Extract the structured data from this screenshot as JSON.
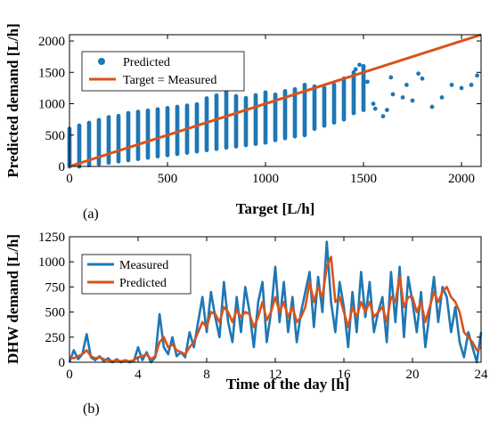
{
  "chart_data": [
    {
      "type": "scatter",
      "panel_label": "(a)",
      "xlabel": "Target [L/h]",
      "ylabel": "Predicted demand [L/h]",
      "xlim": [
        0,
        2100
      ],
      "ylim": [
        0,
        2100
      ],
      "xticks": [
        0,
        500,
        1000,
        1500,
        2000
      ],
      "yticks": [
        0,
        500,
        1000,
        1500,
        2000
      ],
      "grid": false,
      "legend_position": "top-left",
      "series": [
        {
          "name": "Predicted",
          "kind": "points",
          "color": "#1f77b4",
          "columns": [
            {
              "x": 0,
              "ymin": 0,
              "ymax": 600
            },
            {
              "x": 50,
              "ymin": 0,
              "ymax": 650
            },
            {
              "x": 100,
              "ymin": 20,
              "ymax": 700
            },
            {
              "x": 150,
              "ymin": 40,
              "ymax": 760
            },
            {
              "x": 200,
              "ymin": 60,
              "ymax": 800
            },
            {
              "x": 250,
              "ymin": 80,
              "ymax": 820
            },
            {
              "x": 300,
              "ymin": 100,
              "ymax": 850
            },
            {
              "x": 350,
              "ymin": 120,
              "ymax": 880
            },
            {
              "x": 400,
              "ymin": 140,
              "ymax": 900
            },
            {
              "x": 450,
              "ymin": 160,
              "ymax": 920
            },
            {
              "x": 500,
              "ymin": 180,
              "ymax": 940
            },
            {
              "x": 550,
              "ymin": 200,
              "ymax": 960
            },
            {
              "x": 600,
              "ymin": 220,
              "ymax": 980
            },
            {
              "x": 650,
              "ymin": 240,
              "ymax": 1000
            },
            {
              "x": 700,
              "ymin": 260,
              "ymax": 1100
            },
            {
              "x": 750,
              "ymin": 280,
              "ymax": 1150
            },
            {
              "x": 800,
              "ymin": 300,
              "ymax": 1200
            },
            {
              "x": 850,
              "ymin": 320,
              "ymax": 1120
            },
            {
              "x": 900,
              "ymin": 340,
              "ymax": 1100
            },
            {
              "x": 950,
              "ymin": 360,
              "ymax": 1150
            },
            {
              "x": 1000,
              "ymin": 380,
              "ymax": 1200
            },
            {
              "x": 1050,
              "ymin": 420,
              "ymax": 1150
            },
            {
              "x": 1100,
              "ymin": 450,
              "ymax": 1200
            },
            {
              "x": 1150,
              "ymin": 480,
              "ymax": 1250
            },
            {
              "x": 1200,
              "ymin": 500,
              "ymax": 1300
            },
            {
              "x": 1250,
              "ymin": 600,
              "ymax": 1280
            },
            {
              "x": 1300,
              "ymin": 650,
              "ymax": 1250
            },
            {
              "x": 1350,
              "ymin": 700,
              "ymax": 1300
            },
            {
              "x": 1400,
              "ymin": 750,
              "ymax": 1400
            },
            {
              "x": 1450,
              "ymin": 850,
              "ymax": 1500
            },
            {
              "x": 1500,
              "ymin": 900,
              "ymax": 1600
            }
          ],
          "scattered_points": [
            [
              1550,
              1000
            ],
            [
              1560,
              920
            ],
            [
              1600,
              800
            ],
            [
              1620,
              900
            ],
            [
              1650,
              1150
            ],
            [
              1700,
              1100
            ],
            [
              1720,
              1300
            ],
            [
              1750,
              1050
            ],
            [
              1800,
              1400
            ],
            [
              1850,
              950
            ],
            [
              1900,
              1100
            ],
            [
              1950,
              1300
            ],
            [
              2000,
              1250
            ],
            [
              2050,
              1300
            ],
            [
              2080,
              1450
            ],
            [
              1460,
              1550
            ],
            [
              1480,
              1620
            ],
            [
              1520,
              1350
            ],
            [
              1640,
              1420
            ],
            [
              1780,
              1480
            ]
          ]
        },
        {
          "name": "Target = Measured",
          "kind": "line",
          "color": "#d95319",
          "x": [
            0,
            2100
          ],
          "y": [
            0,
            2100
          ]
        }
      ]
    },
    {
      "type": "line",
      "panel_label": "(b)",
      "xlabel": "Time of the day [h]",
      "ylabel": "DHW demand [L/h]",
      "xlim": [
        0,
        24
      ],
      "ylim": [
        0,
        1250
      ],
      "xticks": [
        0,
        4,
        8,
        12,
        16,
        20,
        24
      ],
      "yticks": [
        0,
        250,
        500,
        750,
        1000,
        1250
      ],
      "grid": false,
      "legend_position": "top-left",
      "series": [
        {
          "name": "Measured",
          "color": "#1f77b4",
          "x": [
            0,
            0.25,
            0.5,
            0.75,
            1.0,
            1.25,
            1.5,
            1.75,
            2.0,
            2.25,
            2.5,
            2.75,
            3.0,
            3.25,
            3.5,
            3.75,
            4.0,
            4.25,
            4.5,
            4.75,
            5.0,
            5.25,
            5.5,
            5.75,
            6.0,
            6.25,
            6.5,
            6.75,
            7.0,
            7.25,
            7.5,
            7.75,
            8.0,
            8.25,
            8.5,
            8.75,
            9.0,
            9.25,
            9.5,
            9.75,
            10.0,
            10.25,
            10.5,
            10.75,
            11.0,
            11.25,
            11.5,
            11.75,
            12.0,
            12.25,
            12.5,
            12.75,
            13.0,
            13.25,
            13.5,
            13.75,
            14.0,
            14.25,
            14.5,
            14.75,
            15.0,
            15.25,
            15.5,
            15.75,
            16.0,
            16.25,
            16.5,
            16.75,
            17.0,
            17.25,
            17.5,
            17.75,
            18.0,
            18.25,
            18.5,
            18.75,
            19.0,
            19.25,
            19.5,
            19.75,
            20.0,
            20.25,
            20.5,
            20.75,
            21.0,
            21.25,
            21.5,
            21.75,
            22.0,
            22.25,
            22.5,
            22.75,
            23.0,
            23.25,
            23.5,
            23.75,
            24.0
          ],
          "y": [
            0,
            120,
            30,
            80,
            280,
            50,
            20,
            60,
            10,
            40,
            0,
            30,
            0,
            20,
            0,
            10,
            150,
            20,
            100,
            0,
            50,
            480,
            150,
            80,
            250,
            60,
            100,
            50,
            300,
            150,
            400,
            650,
            300,
            700,
            450,
            250,
            800,
            400,
            200,
            650,
            300,
            750,
            500,
            150,
            600,
            800,
            200,
            500,
            950,
            400,
            800,
            300,
            650,
            200,
            500,
            700,
            900,
            350,
            850,
            500,
            1200,
            600,
            300,
            800,
            550,
            150,
            700,
            300,
            900,
            450,
            800,
            300,
            500,
            650,
            200,
            900,
            400,
            950,
            250,
            850,
            600,
            300,
            700,
            150,
            500,
            850,
            400,
            750,
            650,
            300,
            550,
            200,
            50,
            300,
            150,
            0,
            300
          ]
        },
        {
          "name": "Predicted",
          "color": "#d95319",
          "x": [
            0,
            0.25,
            0.5,
            0.75,
            1.0,
            1.25,
            1.5,
            1.75,
            2.0,
            2.25,
            2.5,
            2.75,
            3.0,
            3.25,
            3.5,
            3.75,
            4.0,
            4.25,
            4.5,
            4.75,
            5.0,
            5.25,
            5.5,
            5.75,
            6.0,
            6.25,
            6.5,
            6.75,
            7.0,
            7.25,
            7.5,
            7.75,
            8.0,
            8.25,
            8.5,
            8.75,
            9.0,
            9.25,
            9.5,
            9.75,
            10.0,
            10.25,
            10.5,
            10.75,
            11.0,
            11.25,
            11.5,
            11.75,
            12.0,
            12.25,
            12.5,
            12.75,
            13.0,
            13.25,
            13.5,
            13.75,
            14.0,
            14.25,
            14.5,
            14.75,
            15.0,
            15.25,
            15.5,
            15.75,
            16.0,
            16.25,
            16.5,
            16.75,
            17.0,
            17.25,
            17.5,
            17.75,
            18.0,
            18.25,
            18.5,
            18.75,
            19.0,
            19.25,
            19.5,
            19.75,
            20.0,
            20.25,
            20.5,
            20.75,
            21.0,
            21.25,
            21.5,
            21.75,
            22.0,
            22.25,
            22.5,
            22.75,
            23.0,
            23.25,
            23.5,
            23.75,
            24.0
          ],
          "y": [
            50,
            40,
            60,
            80,
            120,
            60,
            40,
            50,
            30,
            20,
            10,
            20,
            10,
            20,
            10,
            20,
            50,
            60,
            80,
            30,
            60,
            200,
            250,
            150,
            180,
            120,
            100,
            80,
            150,
            200,
            300,
            400,
            350,
            500,
            480,
            400,
            550,
            500,
            400,
            520,
            450,
            500,
            480,
            350,
            450,
            600,
            420,
            500,
            650,
            500,
            600,
            450,
            550,
            400,
            450,
            550,
            800,
            600,
            750,
            650,
            950,
            1050,
            600,
            650,
            500,
            350,
            550,
            450,
            600,
            500,
            600,
            450,
            500,
            550,
            400,
            650,
            600,
            850,
            550,
            650,
            650,
            500,
            600,
            400,
            550,
            700,
            600,
            700,
            750,
            650,
            600,
            500,
            300,
            250,
            200,
            120,
            150
          ]
        }
      ]
    }
  ]
}
